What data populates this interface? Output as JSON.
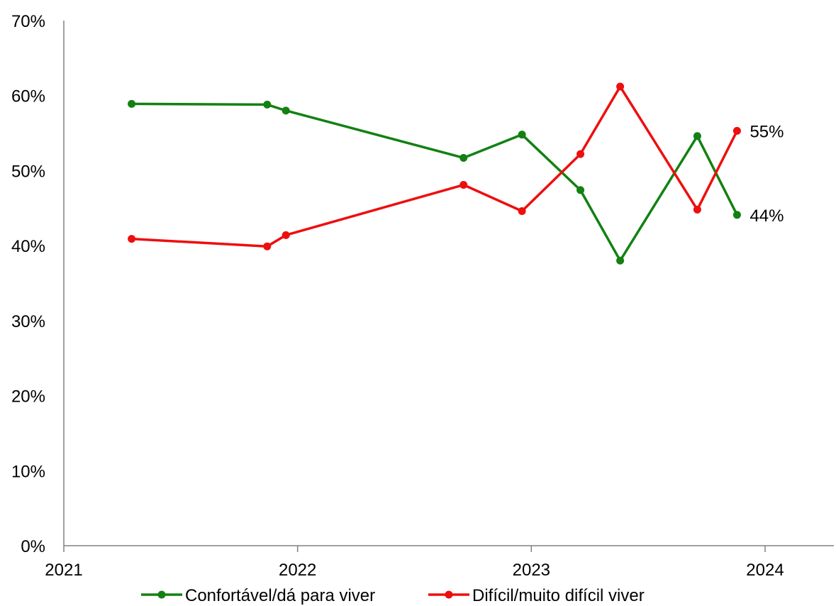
{
  "chart_data": {
    "type": "line",
    "x_unit": "year (decimal)",
    "x_ticks": [
      2021,
      2022,
      2023,
      2024
    ],
    "x_tick_labels": [
      "2021",
      "2022",
      "2023",
      "2024"
    ],
    "xlim": [
      2021,
      2024.3
    ],
    "y_ticks": [
      0,
      10,
      20,
      30,
      40,
      50,
      60,
      70
    ],
    "y_tick_labels": [
      "0%",
      "10%",
      "20%",
      "30%",
      "40%",
      "50%",
      "60%",
      "70%"
    ],
    "ylim": [
      0,
      70
    ],
    "grid": false,
    "legend_position": "bottom",
    "series": [
      {
        "name": "Confortável/dá para viver",
        "color": "#128112",
        "x": [
          2021.29,
          2021.87,
          2021.95,
          2022.71,
          2022.96,
          2023.21,
          2023.38,
          2023.71,
          2023.88
        ],
        "y": [
          58.9,
          58.8,
          58.0,
          51.7,
          54.8,
          47.4,
          38.0,
          54.6,
          44.1
        ],
        "end_label": "44%"
      },
      {
        "name": "Difícil/muito difícil viver",
        "color": "#ee0e0e",
        "x": [
          2021.29,
          2021.87,
          2021.95,
          2022.71,
          2022.96,
          2023.21,
          2023.38,
          2023.71,
          2023.88
        ],
        "y": [
          40.9,
          39.9,
          41.4,
          48.1,
          44.6,
          52.2,
          61.2,
          44.8,
          55.3
        ],
        "end_label": "55%"
      }
    ]
  }
}
